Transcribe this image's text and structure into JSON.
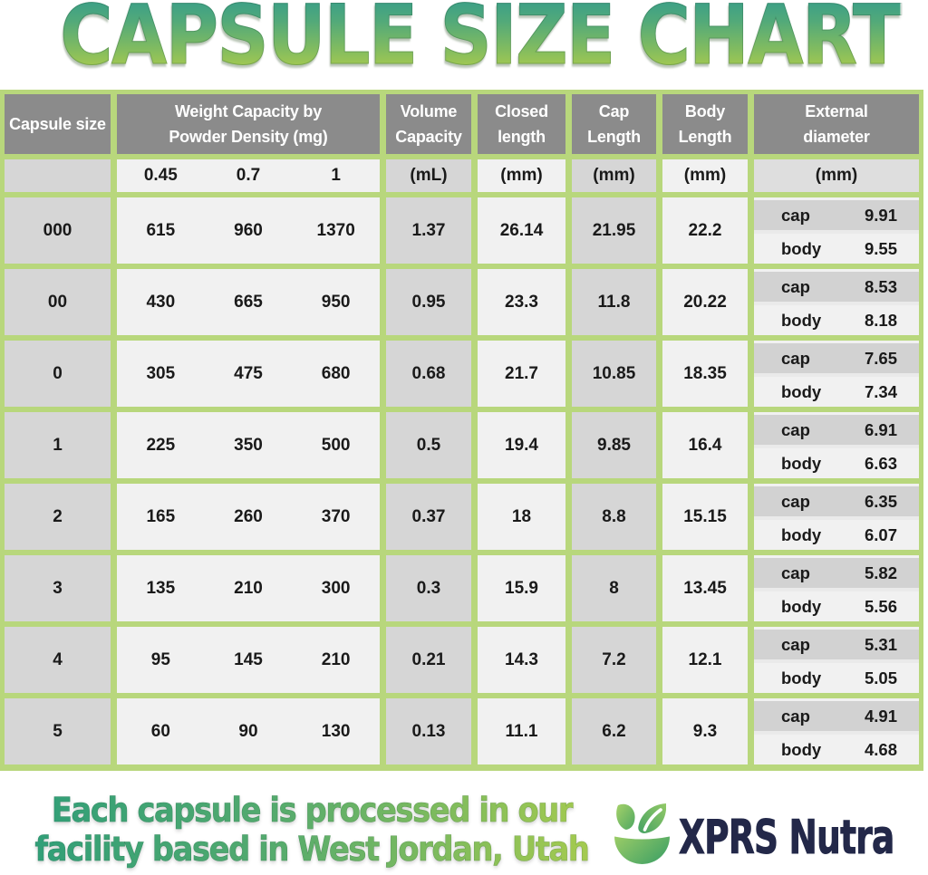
{
  "title": "CAPSULE SIZE CHART",
  "table": {
    "headers": {
      "capsule_size": "Capsule size",
      "weight_line1": "Weight Capacity by",
      "weight_line2": "Powder Density (mg)",
      "volume_line1": "Volume",
      "volume_line2": "Capacity",
      "closed_line1": "Closed",
      "closed_line2": "length",
      "cap_line1": "Cap",
      "cap_line2": "Length",
      "body_line1": "Body",
      "body_line2": "Length",
      "external_line1": "External",
      "external_line2": "diameter"
    },
    "units": {
      "densities": [
        "0.45",
        "0.7",
        "1"
      ],
      "volume": "(mL)",
      "closed": "(mm)",
      "cap": "(mm)",
      "body": "(mm)",
      "external": "(mm)"
    },
    "sub_labels": {
      "cap": "cap",
      "body": "body"
    },
    "rows": [
      {
        "size": "000",
        "weights": [
          "615",
          "960",
          "1370"
        ],
        "volume": "1.37",
        "closed": "26.14",
        "cap_length": "21.95",
        "body_length": "22.2",
        "ext_cap": "9.91",
        "ext_body": "9.55"
      },
      {
        "size": "00",
        "weights": [
          "430",
          "665",
          "950"
        ],
        "volume": "0.95",
        "closed": "23.3",
        "cap_length": "11.8",
        "body_length": "20.22",
        "ext_cap": "8.53",
        "ext_body": "8.18"
      },
      {
        "size": "0",
        "weights": [
          "305",
          "475",
          "680"
        ],
        "volume": "0.68",
        "closed": "21.7",
        "cap_length": "10.85",
        "body_length": "18.35",
        "ext_cap": "7.65",
        "ext_body": "7.34"
      },
      {
        "size": "1",
        "weights": [
          "225",
          "350",
          "500"
        ],
        "volume": "0.5",
        "closed": "19.4",
        "cap_length": "9.85",
        "body_length": "16.4",
        "ext_cap": "6.91",
        "ext_body": "6.63"
      },
      {
        "size": "2",
        "weights": [
          "165",
          "260",
          "370"
        ],
        "volume": "0.37",
        "closed": "18",
        "cap_length": "8.8",
        "body_length": "15.15",
        "ext_cap": "6.35",
        "ext_body": "6.07"
      },
      {
        "size": "3",
        "weights": [
          "135",
          "210",
          "300"
        ],
        "volume": "0.3",
        "closed": "15.9",
        "cap_length": "8",
        "body_length": "13.45",
        "ext_cap": "5.82",
        "ext_body": "5.56"
      },
      {
        "size": "4",
        "weights": [
          "95",
          "145",
          "210"
        ],
        "volume": "0.21",
        "closed": "14.3",
        "cap_length": "7.2",
        "body_length": "12.1",
        "ext_cap": "5.31",
        "ext_body": "5.05"
      },
      {
        "size": "5",
        "weights": [
          "60",
          "90",
          "130"
        ],
        "volume": "0.13",
        "closed": "11.1",
        "cap_length": "6.2",
        "body_length": "9.3",
        "ext_cap": "4.91",
        "ext_body": "4.68"
      }
    ]
  },
  "footer": {
    "line1": "Each capsule is processed in our",
    "line2": "facility based in West Jordan, Utah",
    "brand": "XPRS Nutra",
    "logo_icon": "mortar-leaves-icon"
  },
  "colors": {
    "border_green": "#b8d77c",
    "header_gray": "#8b8b8b",
    "cell_gray": "#d6d6d6",
    "cell_light": "#f1f1f1",
    "title_gradient_top": "#3fa185",
    "title_gradient_bottom": "#a2c851",
    "brand_navy": "#232849"
  },
  "chart_data": {
    "type": "table",
    "title": "CAPSULE SIZE CHART",
    "columns": [
      "Capsule size",
      "Weight Capacity by Powder Density (mg) 0.45",
      "Weight Capacity by Powder Density (mg) 0.7",
      "Weight Capacity by Powder Density (mg) 1",
      "Volume Capacity (mL)",
      "Closed length (mm)",
      "Cap Length (mm)",
      "Body Length (mm)",
      "External diameter cap (mm)",
      "External diameter body (mm)"
    ],
    "rows": [
      [
        "000",
        615,
        960,
        1370,
        1.37,
        26.14,
        21.95,
        22.2,
        9.91,
        9.55
      ],
      [
        "00",
        430,
        665,
        950,
        0.95,
        23.3,
        11.8,
        20.22,
        8.53,
        8.18
      ],
      [
        "0",
        305,
        475,
        680,
        0.68,
        21.7,
        10.85,
        18.35,
        7.65,
        7.34
      ],
      [
        "1",
        225,
        350,
        500,
        0.5,
        19.4,
        9.85,
        16.4,
        6.91,
        6.63
      ],
      [
        "2",
        165,
        260,
        370,
        0.37,
        18,
        8.8,
        15.15,
        6.35,
        6.07
      ],
      [
        "3",
        135,
        210,
        300,
        0.3,
        15.9,
        8,
        13.45,
        5.82,
        5.56
      ],
      [
        "4",
        95,
        145,
        210,
        0.21,
        14.3,
        7.2,
        12.1,
        5.31,
        5.05
      ],
      [
        "5",
        60,
        90,
        130,
        0.13,
        11.1,
        6.2,
        9.3,
        4.91,
        4.68
      ]
    ],
    "footnote": "Each capsule is processed in our facility based in West Jordan, Utah"
  }
}
